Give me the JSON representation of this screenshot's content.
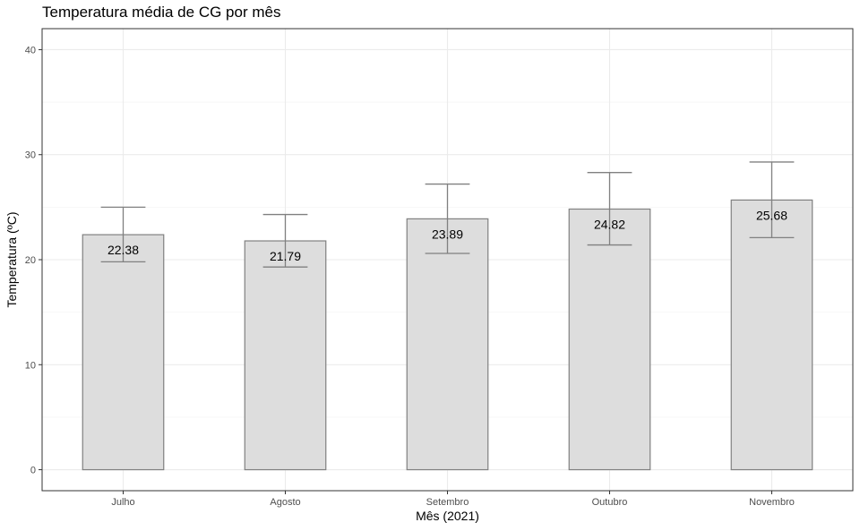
{
  "chart_data": {
    "type": "bar",
    "title": "Temperatura média de CG por mês",
    "xlabel": "Mês (2021)",
    "ylabel": "Temperatura (ºC)",
    "categories": [
      "Julho",
      "Agosto",
      "Setembro",
      "Outubro",
      "Novembro"
    ],
    "values": [
      22.38,
      21.79,
      23.89,
      24.82,
      25.68
    ],
    "value_labels": [
      "22.38",
      "21.79",
      "23.89",
      "24.82",
      "25.68"
    ],
    "error_low": [
      19.8,
      19.3,
      20.6,
      21.4,
      22.1
    ],
    "error_high": [
      25.0,
      24.3,
      27.2,
      28.3,
      29.3
    ],
    "ylim": [
      -2,
      42
    ],
    "yticks": [
      0,
      10,
      20,
      30,
      40
    ],
    "ytick_labels": [
      "0",
      "10",
      "20",
      "30",
      "40"
    ],
    "grid": true,
    "legend": "none",
    "bar_fill": "#dddddd",
    "bar_stroke": "#808080",
    "errorbar_color": "#808080"
  }
}
